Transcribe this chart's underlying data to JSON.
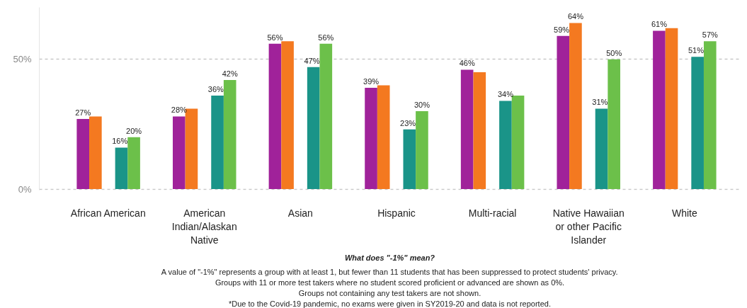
{
  "chart_data": {
    "type": "bar",
    "categories": [
      "African American",
      "American Indian/Alaskan Native",
      "Asian",
      "Hispanic",
      "Multi-racial",
      "Native Hawaiian or other Pacific Islander",
      "White"
    ],
    "series": [
      {
        "color": "#a0229a",
        "values": [
          27,
          28,
          56,
          39,
          46,
          59,
          61
        ],
        "value_labels": [
          "27%",
          "28%",
          "56%",
          "39%",
          "46%",
          "59%",
          "61%"
        ]
      },
      {
        "color": "#f47920",
        "values": [
          28,
          31,
          57,
          40,
          45,
          64,
          62
        ],
        "value_labels": [
          null,
          null,
          null,
          null,
          null,
          "64%",
          null
        ]
      },
      {
        "color": "#1a9488",
        "values": [
          16,
          36,
          47,
          23,
          34,
          31,
          51
        ],
        "value_labels": [
          "16%",
          "36%",
          "47%",
          "23%",
          "34%",
          "31%",
          "51%"
        ]
      },
      {
        "color": "#6cc04a",
        "values": [
          20,
          42,
          56,
          30,
          36,
          50,
          57
        ],
        "value_labels": [
          "20%",
          "42%",
          "56%",
          "30%",
          null,
          "50%",
          "57%"
        ]
      }
    ],
    "yticks": [
      {
        "value": 0,
        "label": "0%"
      },
      {
        "value": 50,
        "label": "50%"
      }
    ],
    "ylim": [
      0,
      70
    ],
    "grid": "y",
    "annotations": [
      "What does \"-1%\" mean?",
      "A value of \"-1%\" represents a group with at least 1, but fewer than 11 students that has been suppressed to protect students' privacy.",
      "Groups with 11 or more test takers where no student scored proficient or advanced are shown as 0%.",
      "Groups not containing any test takers are not shown.",
      "*Due to the Covid-19 pandemic, no exams were given in SY2019-20 and data is not reported."
    ]
  }
}
